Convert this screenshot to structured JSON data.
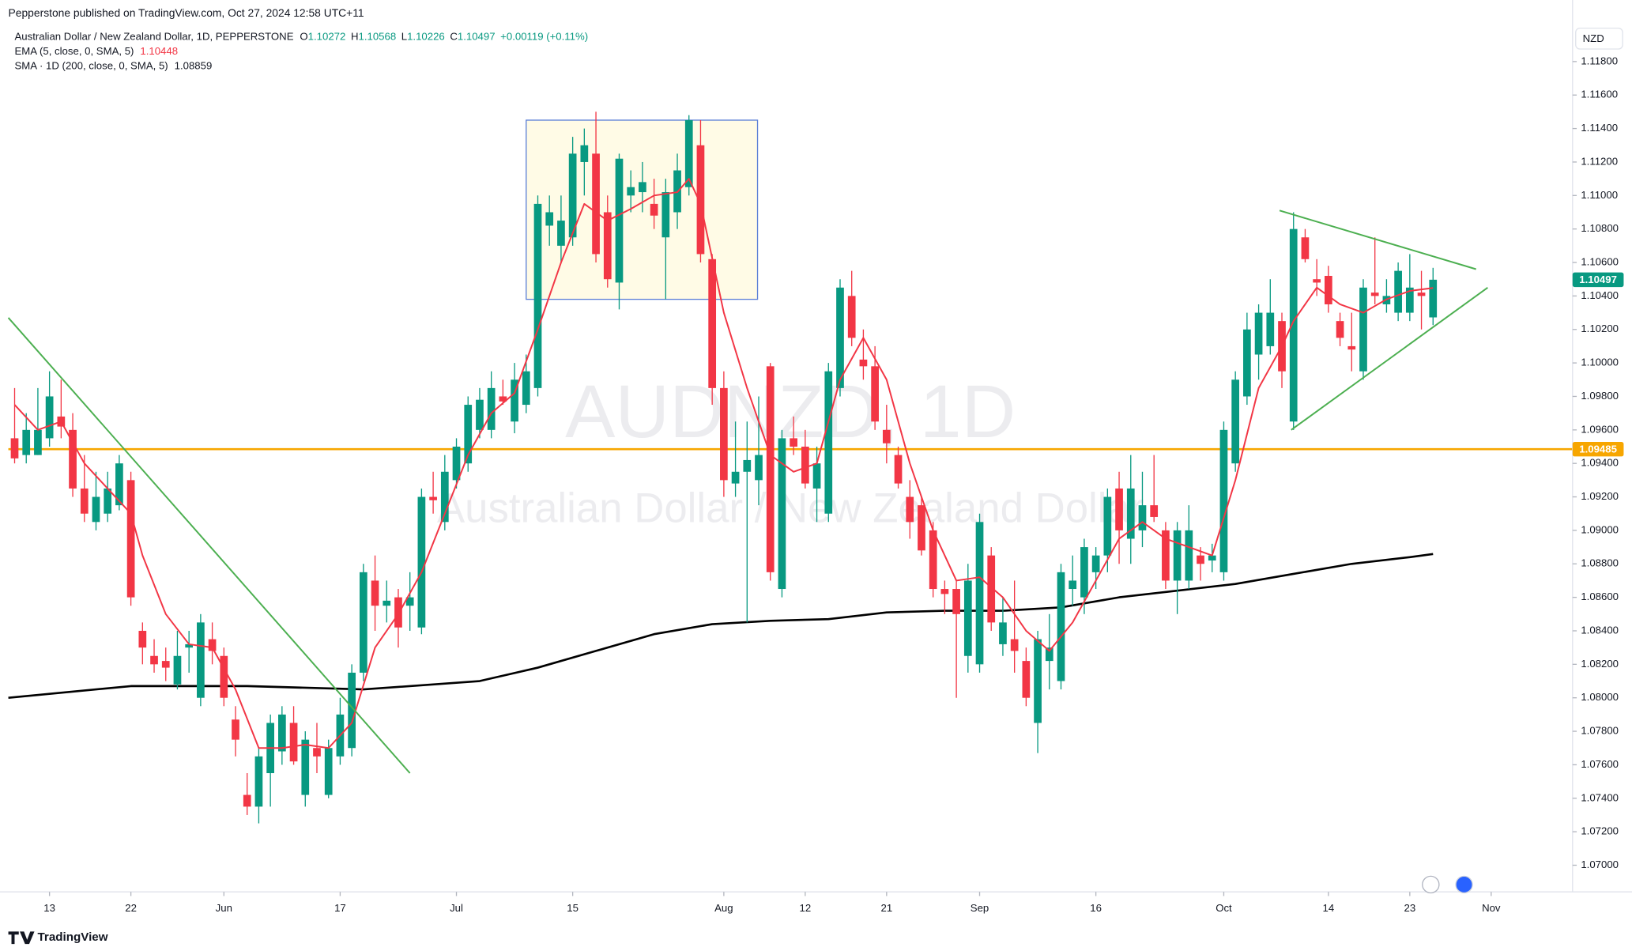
{
  "header": "Pepperstone published on TradingView.com, Oct 27, 2024 12:58 UTC+11",
  "footer": "TradingView",
  "chart_data": {
    "type": "candlestick",
    "title": "Australian Dollar / New Zealand Dollar, 1D, PEPPERSTONE",
    "ohlc_labels": [
      "O",
      "H",
      "L",
      "C"
    ],
    "change": "+0.00119 (+0.11%)",
    "watermark": "AUDNZD, 1D",
    "watermark_subtitle": "Australian Dollar / New Zealand Dollar",
    "currency": "NZD",
    "up_color": "#089981",
    "down_color": "#f23645",
    "grid": false,
    "xlim": [
      -0.54,
      134
    ],
    "ylim": [
      1.06841,
      1.12043
    ],
    "xticks": [
      {
        "value": 3,
        "label": "13"
      },
      {
        "value": 10,
        "label": "22"
      },
      {
        "value": 18,
        "label": "Jun"
      },
      {
        "value": 28,
        "label": "17"
      },
      {
        "value": 38,
        "label": "Jul"
      },
      {
        "value": 48,
        "label": "15"
      },
      {
        "value": 61,
        "label": "Aug"
      },
      {
        "value": 68,
        "label": "12"
      },
      {
        "value": 75,
        "label": "21"
      },
      {
        "value": 83,
        "label": "Sep"
      },
      {
        "value": 93,
        "label": "16"
      },
      {
        "value": 104,
        "label": "Oct"
      },
      {
        "value": 113,
        "label": "14"
      },
      {
        "value": 120,
        "label": "23"
      },
      {
        "value": 127,
        "label": "Nov"
      }
    ],
    "yticks": [
      {
        "value": 1.07,
        "label": "1.07000"
      },
      {
        "value": 1.072,
        "label": "1.07200"
      },
      {
        "value": 1.074,
        "label": "1.07400"
      },
      {
        "value": 1.076,
        "label": "1.07600"
      },
      {
        "value": 1.078,
        "label": "1.07800"
      },
      {
        "value": 1.08,
        "label": "1.08000"
      },
      {
        "value": 1.082,
        "label": "1.08200"
      },
      {
        "value": 1.084,
        "label": "1.08400"
      },
      {
        "value": 1.086,
        "label": "1.08600"
      },
      {
        "value": 1.088,
        "label": "1.08800"
      },
      {
        "value": 1.09,
        "label": "1.09000"
      },
      {
        "value": 1.092,
        "label": "1.09200"
      },
      {
        "value": 1.094,
        "label": "1.09400"
      },
      {
        "value": 1.096,
        "label": "1.09600"
      },
      {
        "value": 1.098,
        "label": "1.09800"
      },
      {
        "value": 1.1,
        "label": "1.10000"
      },
      {
        "value": 1.102,
        "label": "1.10200"
      },
      {
        "value": 1.104,
        "label": "1.10400"
      },
      {
        "value": 1.106,
        "label": "1.10600"
      },
      {
        "value": 1.108,
        "label": "1.10800"
      },
      {
        "value": 1.11,
        "label": "1.11000"
      },
      {
        "value": 1.112,
        "label": "1.11200"
      },
      {
        "value": 1.114,
        "label": "1.11400"
      },
      {
        "value": 1.116,
        "label": "1.11600"
      },
      {
        "value": 1.118,
        "label": "1.11800"
      }
    ],
    "candles": [
      [
        1.0955,
        1.0985,
        1.094,
        1.0943
      ],
      [
        1.0945,
        1.097,
        1.094,
        1.096
      ],
      [
        1.0945,
        1.0985,
        1.0945,
        1.096
      ],
      [
        1.0955,
        1.0995,
        1.095,
        1.098
      ],
      [
        1.0968,
        1.099,
        1.0955,
        1.0962
      ],
      [
        1.096,
        1.097,
        1.092,
        1.0925
      ],
      [
        1.0925,
        1.0945,
        1.0905,
        1.091
      ],
      [
        1.0905,
        1.0935,
        1.09,
        1.092
      ],
      [
        1.091,
        1.0935,
        1.0905,
        1.0925
      ],
      [
        1.0915,
        1.0945,
        1.0912,
        1.094
      ],
      [
        1.093,
        1.0935,
        1.0855,
        1.086
      ],
      [
        1.084,
        1.0845,
        1.082,
        1.083
      ],
      [
        1.0825,
        1.0835,
        1.0815,
        1.082
      ],
      [
        1.0822,
        1.083,
        1.081,
        1.0818
      ],
      [
        1.0808,
        1.084,
        1.0805,
        1.0825
      ],
      [
        1.083,
        1.084,
        1.0815,
        1.0832
      ],
      [
        1.08,
        1.085,
        1.0795,
        1.0845
      ],
      [
        1.0835,
        1.0845,
        1.082,
        1.0828
      ],
      [
        1.0825,
        1.083,
        1.0795,
        1.08
      ],
      [
        1.0787,
        1.0795,
        1.0765,
        1.0775
      ],
      [
        1.0742,
        1.0755,
        1.073,
        1.0735
      ],
      [
        1.0735,
        1.077,
        1.0725,
        1.0765
      ],
      [
        1.0755,
        1.079,
        1.0735,
        1.0785
      ],
      [
        1.0768,
        1.0795,
        1.076,
        1.079
      ],
      [
        1.0785,
        1.0795,
        1.076,
        1.0762
      ],
      [
        1.0742,
        1.078,
        1.0735,
        1.0775
      ],
      [
        1.077,
        1.0785,
        1.0755,
        1.0765
      ],
      [
        1.0742,
        1.0775,
        1.074,
        1.077
      ],
      [
        1.0765,
        1.08,
        1.076,
        1.079
      ],
      [
        1.077,
        1.082,
        1.0765,
        1.0815
      ],
      [
        1.0815,
        1.088,
        1.081,
        1.0875
      ],
      [
        1.087,
        1.0885,
        1.084,
        1.0855
      ],
      [
        1.0855,
        1.087,
        1.0845,
        1.0858
      ],
      [
        1.086,
        1.0865,
        1.083,
        1.0842
      ],
      [
        1.0855,
        1.0875,
        1.084,
        1.086
      ],
      [
        1.0842,
        1.0925,
        1.0838,
        1.092
      ],
      [
        1.092,
        1.0935,
        1.091,
        1.0918
      ],
      [
        1.0905,
        1.0945,
        1.09,
        1.0935
      ],
      [
        1.093,
        1.0955,
        1.0925,
        1.095
      ],
      [
        1.094,
        1.098,
        1.0935,
        1.0975
      ],
      [
        1.096,
        1.0985,
        1.0955,
        1.0978
      ],
      [
        1.096,
        1.0995,
        1.0955,
        1.0985
      ],
      [
        1.098,
        1.099,
        1.0975,
        1.0977
      ],
      [
        1.0965,
        1.1,
        1.0958,
        1.099
      ],
      [
        1.0975,
        1.1005,
        1.097,
        1.0995
      ],
      [
        1.0985,
        1.11,
        1.098,
        1.1095
      ],
      [
        1.1082,
        1.11,
        1.107,
        1.109
      ],
      [
        1.107,
        1.11,
        1.106,
        1.1085
      ],
      [
        1.1075,
        1.1135,
        1.107,
        1.1125
      ],
      [
        1.112,
        1.114,
        1.11,
        1.113
      ],
      [
        1.1125,
        1.115,
        1.106,
        1.1065
      ],
      [
        1.109,
        1.11,
        1.1045,
        1.105
      ],
      [
        1.1048,
        1.1125,
        1.1032,
        1.1122
      ],
      [
        1.11,
        1.1115,
        1.109,
        1.1105
      ],
      [
        1.1102,
        1.112,
        1.109,
        1.1108
      ],
      [
        1.1095,
        1.111,
        1.108,
        1.1088
      ],
      [
        1.1075,
        1.111,
        1.1038,
        1.1102
      ],
      [
        1.109,
        1.1125,
        1.108,
        1.1115
      ],
      [
        1.1105,
        1.1148,
        1.11,
        1.1145
      ],
      [
        1.113,
        1.1145,
        1.106,
        1.1065
      ],
      [
        1.1062,
        1.1065,
        1.0975,
        1.0985
      ],
      [
        1.0985,
        1.0995,
        1.092,
        1.093
      ],
      [
        1.0928,
        1.0965,
        1.092,
        1.0935
      ],
      [
        1.0935,
        1.0965,
        1.0845,
        1.0942
      ],
      [
        1.093,
        1.098,
        1.0915,
        1.0945
      ],
      [
        1.0998,
        1.1,
        1.087,
        1.0875
      ],
      [
        1.0865,
        1.096,
        1.086,
        1.0955
      ],
      [
        1.0955,
        1.0968,
        1.0945,
        1.095
      ],
      [
        1.095,
        1.096,
        1.0925,
        1.0928
      ],
      [
        1.0925,
        1.095,
        1.0905,
        1.094
      ],
      [
        1.091,
        1.1,
        1.0905,
        1.0995
      ],
      [
        1.0985,
        1.105,
        1.098,
        1.1045
      ],
      [
        1.104,
        1.1055,
        1.101,
        1.1015
      ],
      [
        1.1002,
        1.102,
        1.099,
        1.0998
      ],
      [
        1.0998,
        1.101,
        1.096,
        1.0965
      ],
      [
        1.096,
        1.0975,
        1.094,
        1.0952
      ],
      [
        1.0945,
        1.095,
        1.0925,
        1.0928
      ],
      [
        1.092,
        1.093,
        1.0895,
        1.0905
      ],
      [
        1.0915,
        1.092,
        1.0885,
        1.0888
      ],
      [
        1.09,
        1.0905,
        1.086,
        1.0865
      ],
      [
        1.0865,
        1.087,
        1.085,
        1.0862
      ],
      [
        1.0865,
        1.087,
        1.08,
        1.085
      ],
      [
        1.0825,
        1.088,
        1.0815,
        1.087
      ],
      [
        1.082,
        1.091,
        1.0815,
        1.0905
      ],
      [
        1.0885,
        1.089,
        1.084,
        1.0845
      ],
      [
        1.0832,
        1.086,
        1.0825,
        1.0845
      ],
      [
        1.0835,
        1.087,
        1.0815,
        1.0828
      ],
      [
        1.0822,
        1.083,
        1.0795,
        1.08
      ],
      [
        1.0785,
        1.084,
        1.0767,
        1.0835
      ],
      [
        1.0822,
        1.085,
        1.0805,
        1.083
      ],
      [
        1.081,
        1.088,
        1.0805,
        1.0875
      ],
      [
        1.0865,
        1.0885,
        1.0855,
        1.087
      ],
      [
        1.086,
        1.0895,
        1.085,
        1.089
      ],
      [
        1.0875,
        1.089,
        1.0865,
        1.0885
      ],
      [
        1.0885,
        1.0925,
        1.0875,
        1.092
      ],
      [
        1.0925,
        1.0935,
        1.088,
        1.09
      ],
      [
        1.0895,
        1.0945,
        1.088,
        1.0925
      ],
      [
        1.09,
        1.0935,
        1.089,
        1.0915
      ],
      [
        1.0915,
        1.0945,
        1.0905,
        1.0908
      ],
      [
        1.09,
        1.0905,
        1.0865,
        1.087
      ],
      [
        1.087,
        1.0905,
        1.085,
        1.09
      ],
      [
        1.087,
        1.0915,
        1.0865,
        1.09
      ],
      [
        1.0885,
        1.089,
        1.087,
        1.088
      ],
      [
        1.0882,
        1.0892,
        1.0875,
        1.0885
      ],
      [
        1.0875,
        1.0965,
        1.087,
        1.096
      ],
      [
        1.094,
        1.0995,
        1.0935,
        1.099
      ],
      [
        1.098,
        1.103,
        1.0975,
        1.102
      ],
      [
        1.1005,
        1.1035,
        1.099,
        1.103
      ],
      [
        1.101,
        1.105,
        1.1005,
        1.103
      ],
      [
        1.1025,
        1.103,
        1.0985,
        1.0995
      ],
      [
        1.0965,
        1.109,
        1.096,
        1.108
      ],
      [
        1.1075,
        1.108,
        1.106,
        1.1062
      ],
      [
        1.105,
        1.1062,
        1.104,
        1.1048
      ],
      [
        1.1052,
        1.1058,
        1.103,
        1.1035
      ],
      [
        1.1025,
        1.103,
        1.101,
        1.1015
      ],
      [
        1.101,
        1.103,
        1.0995,
        1.1008
      ],
      [
        1.0995,
        1.105,
        1.099,
        1.1045
      ],
      [
        1.1042,
        1.1075,
        1.1035,
        1.104
      ],
      [
        1.1035,
        1.105,
        1.103,
        1.104
      ],
      [
        1.103,
        1.106,
        1.1025,
        1.1055
      ],
      [
        1.103,
        1.1065,
        1.1025,
        1.1045
      ],
      [
        1.1042,
        1.1055,
        1.102,
        1.104
      ],
      [
        1.10272,
        1.10568,
        1.10226,
        1.10497
      ]
    ],
    "overlays": [
      {
        "name": "EMA (5, close, 0, SMA, 5)",
        "color": "#f23645",
        "x": [
          0,
          2,
          4,
          6,
          8,
          10,
          11,
          13,
          15,
          17,
          19,
          21,
          23,
          25,
          27,
          29,
          31,
          33,
          35,
          37,
          39,
          41,
          43,
          45,
          47,
          49,
          51,
          53,
          55,
          57,
          58,
          59,
          61,
          63,
          65,
          67,
          69,
          71,
          73,
          75,
          77,
          79,
          81,
          83,
          85,
          87,
          89,
          91,
          93,
          95,
          97,
          99,
          101,
          103,
          105,
          107,
          109,
          110,
          112,
          114,
          116,
          118,
          120,
          122
        ],
        "values": [
          1.0975,
          1.096,
          1.0965,
          1.094,
          1.0925,
          1.091,
          1.0885,
          1.085,
          1.0832,
          1.083,
          1.0805,
          1.077,
          1.077,
          1.0772,
          1.077,
          1.0785,
          1.083,
          1.085,
          1.0875,
          1.091,
          1.0945,
          1.097,
          1.0982,
          1.102,
          1.106,
          1.1095,
          1.1085,
          1.1092,
          1.11,
          1.1102,
          1.111,
          1.1095,
          1.103,
          1.0985,
          1.0945,
          1.0935,
          1.094,
          1.099,
          1.1015,
          1.099,
          1.094,
          1.09,
          1.087,
          1.0872,
          1.086,
          1.084,
          1.0828,
          1.0845,
          1.087,
          1.0895,
          1.0905,
          1.0895,
          1.089,
          1.0885,
          1.093,
          1.0985,
          1.101,
          1.1025,
          1.1045,
          1.1035,
          1.103,
          1.1038,
          1.1043,
          1.10448
        ]
      },
      {
        "name": "SMA · 1D (200, close, 0, SMA, 5)",
        "color": "#000000",
        "x": [
          -0.54,
          10,
          20,
          30,
          40,
          45,
          50,
          55,
          60,
          65,
          70,
          75,
          80,
          85,
          90,
          95,
          100,
          105,
          110,
          115,
          120,
          122
        ],
        "values": [
          1.08,
          1.0807,
          1.0807,
          1.0805,
          1.081,
          1.0818,
          1.0828,
          1.0838,
          1.0844,
          1.0846,
          1.0847,
          1.0851,
          1.0852,
          1.0852,
          1.0854,
          1.086,
          1.0864,
          1.0868,
          1.0874,
          1.088,
          1.0884,
          1.08859
        ]
      }
    ],
    "rectangle": {
      "x": [
        44,
        63.9
      ],
      "values": [
        1.1145,
        1.1038
      ],
      "color": "#5b7fd6",
      "fill": "#fffbe6"
    },
    "hline": {
      "value": 1.09485,
      "color": "#f7a600"
    },
    "trendlines": [
      {
        "x": [
          -0.54,
          34
        ],
        "values": [
          1.1027,
          1.0755
        ],
        "color": "#4caf50"
      },
      {
        "x": [
          108.8,
          125.7
        ],
        "values": [
          1.1091,
          1.1056
        ],
        "color": "#4caf50"
      },
      {
        "x": [
          109.8,
          126.7
        ],
        "values": [
          1.096,
          1.1045
        ],
        "color": "#4caf50"
      }
    ]
  }
}
